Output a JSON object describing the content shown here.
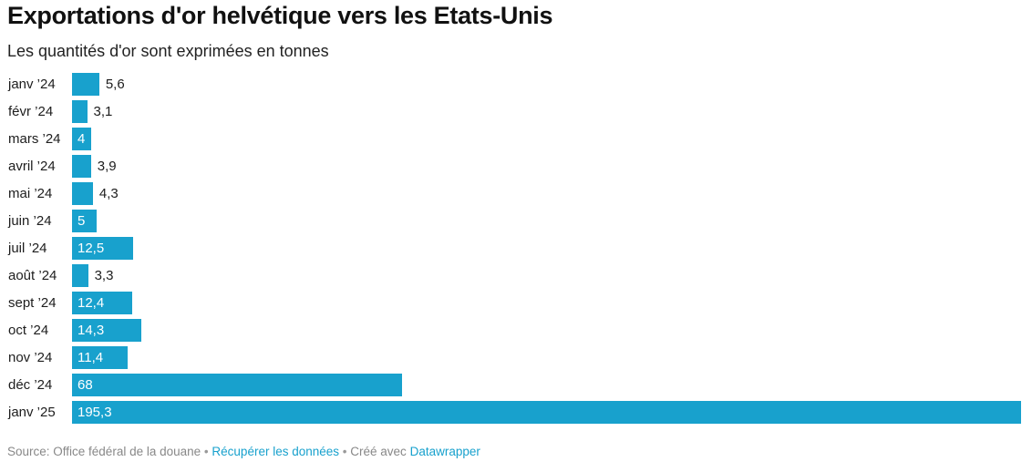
{
  "title": "Exportations d'or helvétique vers les Etats-Unis",
  "subtitle": "Les quantités d'or sont exprimées en tonnes",
  "footer": {
    "source": "Source: Office fédéral de la douane",
    "separator": "•",
    "get_data_label": "Récupérer les données",
    "created_with": "Créé avec",
    "tool": "Datawrapper"
  },
  "colors": {
    "bar": "#18a1cd",
    "link": "#18a1cd"
  },
  "chart_data": {
    "type": "bar",
    "orientation": "horizontal",
    "categories": [
      "janv ’24",
      "févr ’24",
      "mars ’24",
      "avril ’24",
      "mai ’24",
      "juin ’24",
      "juil ’24",
      "août ’24",
      "sept ’24",
      "oct ’24",
      "nov ’24",
      "déc ’24",
      "janv ’25"
    ],
    "values": [
      5.6,
      3.1,
      4,
      3.9,
      4.3,
      5,
      12.5,
      3.3,
      12.4,
      14.3,
      11.4,
      68,
      195.3
    ],
    "value_labels": [
      "5,6",
      "3,1",
      "4",
      "3,9",
      "4,3",
      "5",
      "12,5",
      "3,3",
      "12,4",
      "14,3",
      "11,4",
      "68",
      "195,3"
    ],
    "title": "Exportations d'or helvétique vers les Etats-Unis",
    "subtitle": "Les quantités d'or sont exprimées en tonnes",
    "xlim": [
      0,
      195.3
    ],
    "grid": false,
    "legend": "none"
  }
}
